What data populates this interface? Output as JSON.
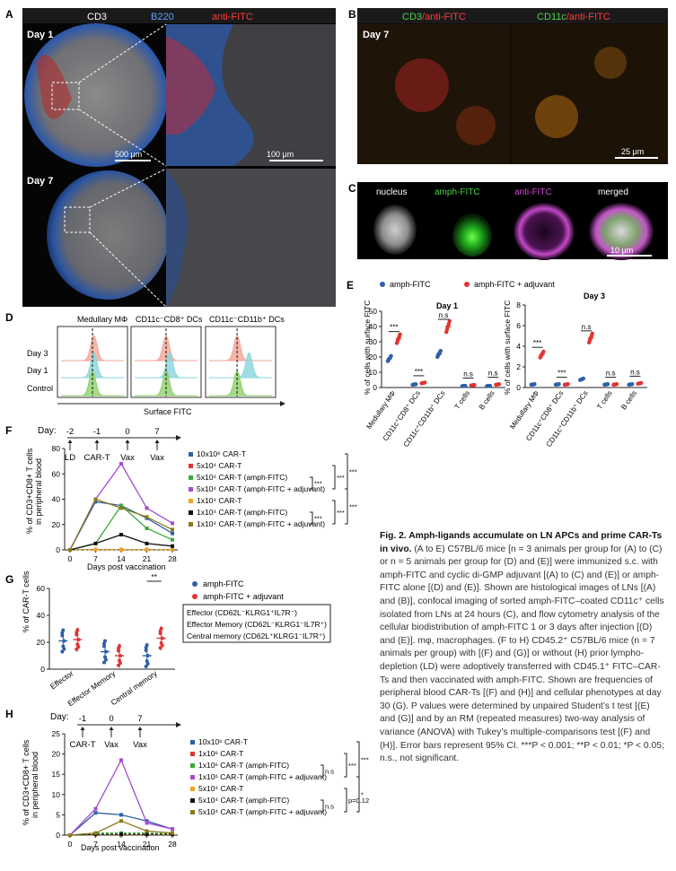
{
  "panel_letters": {
    "a": "A",
    "b": "B",
    "c": "C",
    "d": "D",
    "e": "E",
    "f": "F",
    "g": "G",
    "h": "H"
  },
  "panel_a": {
    "label_cd3": "CD3",
    "label_b220": "B220",
    "label_antifitc": "anti-FITC",
    "day1": "Day 1",
    "day7": "Day 7",
    "scale_left": "500 μm",
    "scale_right": "100 μm"
  },
  "panel_b": {
    "title_left_1": "CD3",
    "title_left_2": "/anti-FITC",
    "title_right_1": "CD11c",
    "title_right_2": "/anti-FITC",
    "day": "Day 7",
    "scale": "25 μm"
  },
  "panel_c": {
    "labels": [
      "nucleus",
      "amph-FITC",
      "anti-FITC",
      "merged"
    ],
    "scale": "10 μm"
  },
  "panel_d": {
    "titles": [
      "Medullary MΦ",
      "CD11c⁻CD8⁺ DCs",
      "CD11c⁻CD11b⁺ DCs"
    ],
    "rows": [
      "Day 3",
      "Day 1",
      "Control"
    ],
    "xlabel": "Surface FITC",
    "colors": {
      "day3": "#f2a595",
      "day1": "#88d6dd",
      "control": "#8fcf6d"
    }
  },
  "panel_e": {
    "legend": [
      "amph-FITC",
      "amph-FITC + adjuvant"
    ],
    "colors": {
      "amph": "#2f5fa8",
      "adj": "#e03434"
    },
    "ylabel": "% of cells with surface FITC",
    "categories": [
      "Medullary MΦ",
      "CD11c⁺CD8⁺ DCs",
      "CD11c⁺CD11b⁺ DCs",
      "T cells",
      "B cells"
    ],
    "sig_labels": [
      "***",
      "***",
      "n.s",
      "n.s",
      "n.s"
    ],
    "day1": {
      "title": "Day 1",
      "ylim": [
        0,
        50
      ],
      "yticks": [
        0,
        10,
        20,
        30,
        40,
        50
      ],
      "amph": [
        19,
        2,
        22,
        1,
        1
      ],
      "adj": [
        32,
        3,
        40,
        1.5,
        2
      ]
    },
    "day3": {
      "title": "Day 3",
      "ylim": [
        0,
        8
      ],
      "yticks": [
        0,
        2,
        4,
        6,
        8
      ],
      "amph": [
        0.3,
        0.3,
        0.8,
        0.3,
        0.3
      ],
      "adj": [
        3.2,
        0.3,
        4.8,
        0.3,
        0.4
      ]
    }
  },
  "panel_f": {
    "timeline": {
      "day_label": "Day:",
      "days": [
        "-2",
        "-1",
        "0",
        "7"
      ],
      "events": [
        "LD",
        "CAR-T",
        "Vax",
        "Vax"
      ]
    },
    "ylabel_1": "% of CD3+CD8+ T cells",
    "ylabel_2": "in peripheral blood",
    "xlabel": "Days post vaccination",
    "x": [
      0,
      7,
      14,
      21,
      28
    ],
    "ylim": [
      0,
      80
    ],
    "yticks": [
      0,
      20,
      40,
      60,
      80
    ],
    "series": [
      {
        "name": "10x10⁶ CAR-T",
        "color": "#2f5fa8",
        "values": [
          0,
          38,
          35,
          25,
          13
        ]
      },
      {
        "name": "5x10⁴ CAR-T",
        "color": "#e03434",
        "values": [
          0,
          0.3,
          0.3,
          0.3,
          0.3
        ]
      },
      {
        "name": "5x10⁴ CAR-T (amph-FITC)",
        "color": "#3aa83a",
        "values": [
          0,
          5,
          35,
          17,
          8
        ]
      },
      {
        "name": "5x10⁴ CAR-T (amph-FITC + adjuvant)",
        "color": "#a64bd0",
        "values": [
          0,
          40,
          68,
          33,
          21
        ]
      },
      {
        "name": "1x10⁴ CAR-T",
        "color": "#f2a21e",
        "values": [
          0,
          0.2,
          0.2,
          0.2,
          0.2
        ]
      },
      {
        "name": "1x10⁴ CAR-T (amph-FITC)",
        "color": "#111111",
        "values": [
          0,
          5,
          12,
          5,
          3
        ]
      },
      {
        "name": "1x10⁴ CAR-T (amph-FITC + adjuvant)",
        "color": "#8a7b1a",
        "values": [
          0,
          40,
          33,
          26,
          16
        ]
      }
    ],
    "brackets": [
      "***",
      "***",
      "***",
      "***",
      "***",
      "***"
    ]
  },
  "panel_g": {
    "legend": [
      "amph-FITC",
      "amph-FITC + adjuvant"
    ],
    "ylabel": "% of CAR-T cells",
    "ylim": [
      0,
      60
    ],
    "yticks": [
      0,
      20,
      40,
      60
    ],
    "categories": [
      "Effector",
      "Effector Memory",
      "Central memory"
    ],
    "amph": [
      21,
      13,
      10
    ],
    "adj": [
      22,
      10,
      23
    ],
    "sig": "**",
    "defs": [
      "Effector (CD62L⁻KLRG1⁺IL7R⁻)",
      "Effector Memory (CD62L⁻KLRG1⁻IL7R⁺)",
      "Central memory (CD62L⁺KLRG1⁻IL7R⁺)"
    ]
  },
  "panel_h": {
    "timeline": {
      "day_label": "Day:",
      "days": [
        "-1",
        "0",
        "7"
      ],
      "events": [
        "CAR-T",
        "Vax",
        "Vax"
      ]
    },
    "ylabel_1": "% of CD3+CD8+ T cells",
    "ylabel_2": "in peripheral blood",
    "xlabel": "Days post vaccination",
    "x": [
      0,
      7,
      14,
      21,
      28
    ],
    "ylim": [
      0,
      25
    ],
    "yticks": [
      0,
      5,
      10,
      15,
      20,
      25
    ],
    "series": [
      {
        "name": "10x10⁶ CAR-T",
        "color": "#2f5fa8",
        "values": [
          0,
          5.5,
          5,
          3.5,
          1.5
        ]
      },
      {
        "name": "1x10⁶ CAR-T",
        "color": "#e03434",
        "values": [
          0,
          0.1,
          0.1,
          0.1,
          0.1
        ]
      },
      {
        "name": "1x10⁶ CAR-T (amph-FITC)",
        "color": "#3aa83a",
        "values": [
          0,
          0.5,
          0.5,
          0.5,
          0.3
        ]
      },
      {
        "name": "1x10⁶ CAR-T (amph-FITC + adjuvant)",
        "color": "#a64bd0",
        "values": [
          0,
          6.5,
          18.5,
          3,
          1.5
        ]
      },
      {
        "name": "5x10⁴ CAR-T",
        "color": "#f2a21e",
        "values": [
          0,
          0.1,
          0.1,
          0.1,
          0.1
        ]
      },
      {
        "name": "5x10⁴ CAR-T (amph-FITC)",
        "color": "#111111",
        "values": [
          0,
          0.2,
          0.2,
          0.2,
          0.2
        ]
      },
      {
        "name": "5x10⁴ CAR-T (amph-FITC + adjuvant)",
        "color": "#8a7b1a",
        "values": [
          0,
          0.5,
          3.5,
          1,
          0.5
        ]
      }
    ],
    "brackets": [
      "n.s",
      "***",
      "***",
      "n.s",
      "p=0.12",
      "*"
    ]
  },
  "caption": {
    "title": "Fig. 2. Amph-ligands accumulate on LN APCs and prime CAR-Ts in vivo.",
    "body": "(A to E) C57BL/6 mice [n = 3 animals per group for (A) to (C) or n = 5 animals per group for (D) and (E)] were immunized s.c. with amph-FITC and cyclic di-GMP adjuvant [(A) to (C) and (E)] or amph-FITC alone [(D) and (E)]. Shown are histological images of LNs [(A) and (B)], confocal imaging of sorted amph-FITC–coated CD11c⁺ cells isolated from LNs at 24 hours (C), and flow cytometry analysis of the cellular biodistribution of amph-FITC 1 or 3 days after injection [(D) and (E)]. mφ, macrophages. (F to H) CD45.2⁺ C57BL/6 mice (n = 7 animals per group) with [(F) and (G)] or without (H) prior lympho-depletion (LD) were adoptively transferred with CD45.1⁺ FITC–CAR-Ts and then vaccinated with amph-FITC. Shown are frequencies of peripheral blood CAR-Ts [(F) and (H)] and cellular phenotypes at day 30 (G). P values were determined by unpaired Student’s t test [(E) and (G)] and by an RM (repeated measures) two-way analysis of variance (ANOVA) with Tukey’s multiple-comparisons test [(F) and (H)]. Error bars represent 95% CI. ***P < 0.001; **P < 0.01; *P < 0.05; n.s., not significant."
  }
}
